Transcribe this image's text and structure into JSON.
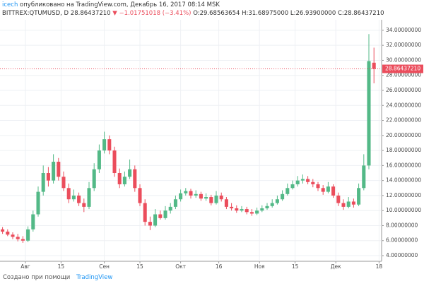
{
  "chart_data": {
    "type": "candlestick",
    "author": "icech",
    "published": "опубликовано на TradingView.com, Декабрь 16, 2017 08:14 MSK",
    "symbol": "BITTREX:QTUMUSD, D",
    "last": "28.86437210",
    "change": "▼ −1.01751018 (−3.41%)",
    "ohlc_labels": [
      "O:29.68563654",
      "H:31.68975000",
      "L:26.93900000",
      "C:28.86437210"
    ],
    "footer": "Создано при помощи",
    "brand": "TradingView",
    "up_color": "#53b987",
    "down_color": "#eb4d5c",
    "grid": true,
    "x": [
      1,
      3,
      5,
      7,
      9,
      11,
      13,
      15,
      17,
      19,
      21,
      23,
      25,
      27,
      29,
      31,
      33,
      35,
      37,
      39,
      41,
      43,
      45,
      47,
      49,
      51,
      53,
      55,
      57,
      59,
      61,
      63,
      65,
      67,
      69,
      71,
      73,
      75,
      77,
      79,
      81,
      83,
      85,
      87,
      89,
      91,
      93,
      95,
      97,
      99,
      101,
      103,
      105,
      107,
      109,
      111,
      113,
      115,
      117,
      119,
      121,
      123,
      125,
      127,
      129,
      131,
      133,
      135,
      137,
      139,
      141,
      143,
      145,
      147
    ],
    "open": [
      7.5,
      7.2,
      6.8,
      6.5,
      6.2,
      6.0,
      7.5,
      9.5,
      12.5,
      15.0,
      14.0,
      16.5,
      14.5,
      13.0,
      11.5,
      12.0,
      11.0,
      10.5,
      13.0,
      15.5,
      18.0,
      19.5,
      18.0,
      15.0,
      13.5,
      14.5,
      15.5,
      13.0,
      11.0,
      8.5,
      8.0,
      9.5,
      9.0,
      10.0,
      10.5,
      11.5,
      12.3,
      12.6,
      12.0,
      12.2,
      11.6,
      11.8,
      11.0,
      12.0,
      11.5,
      10.5,
      10.3,
      10.0,
      10.2,
      9.8,
      9.6,
      10.0,
      10.3,
      10.6,
      11.0,
      11.5,
      12.2,
      13.0,
      13.5,
      14.0,
      14.2,
      13.8,
      13.5,
      13.0,
      12.5,
      13.2,
      12.0,
      11.0,
      10.5,
      11.2,
      10.8,
      13.0,
      16.0,
      29.68563654
    ],
    "high": [
      7.8,
      7.5,
      7.1,
      6.9,
      6.6,
      7.9,
      10.0,
      13.2,
      16.0,
      15.8,
      17.5,
      17.0,
      15.2,
      13.6,
      12.8,
      12.4,
      11.6,
      13.8,
      16.3,
      18.8,
      20.5,
      20.0,
      18.5,
      15.6,
      15.2,
      16.8,
      16.0,
      13.5,
      11.5,
      9.2,
      10.2,
      10.0,
      10.6,
      11.0,
      12.0,
      12.8,
      13.0,
      12.9,
      12.7,
      12.5,
      12.3,
      12.1,
      12.6,
      12.4,
      11.8,
      11.0,
      10.7,
      10.6,
      10.5,
      10.2,
      10.4,
      10.7,
      11.0,
      11.5,
      12.0,
      12.7,
      13.6,
      14.0,
      14.6,
      14.8,
      14.6,
      14.2,
      13.8,
      13.4,
      13.8,
      13.5,
      12.4,
      11.5,
      11.8,
      11.6,
      13.6,
      17.5,
      33.5,
      31.68975
    ],
    "low": [
      6.9,
      6.6,
      6.2,
      5.9,
      5.7,
      5.8,
      7.2,
      9.2,
      12.0,
      13.2,
      13.6,
      14.0,
      12.6,
      11.0,
      11.2,
      10.6,
      9.8,
      10.2,
      12.6,
      15.0,
      17.6,
      17.5,
      14.5,
      13.0,
      13.2,
      14.2,
      12.5,
      10.6,
      8.0,
      7.4,
      7.8,
      8.8,
      8.8,
      9.6,
      10.2,
      11.2,
      12.0,
      11.6,
      11.7,
      11.3,
      11.3,
      10.7,
      10.8,
      11.2,
      10.2,
      10.0,
      9.7,
      9.8,
      9.5,
      9.3,
      9.4,
      9.8,
      10.1,
      10.4,
      10.8,
      11.3,
      12.0,
      12.8,
      13.2,
      13.6,
      13.5,
      13.1,
      12.6,
      12.1,
      12.3,
      11.7,
      10.6,
      10.1,
      10.3,
      10.4,
      10.6,
      12.7,
      15.5,
      26.939
    ],
    "close": [
      7.2,
      6.8,
      6.5,
      6.2,
      6.0,
      7.5,
      9.5,
      12.5,
      15.0,
      14.0,
      16.5,
      14.5,
      13.0,
      11.5,
      12.0,
      11.0,
      10.5,
      13.0,
      15.5,
      18.0,
      19.5,
      18.0,
      15.0,
      13.5,
      14.5,
      15.5,
      13.0,
      11.0,
      8.5,
      8.0,
      9.5,
      9.0,
      10.0,
      10.5,
      11.5,
      12.3,
      12.6,
      12.0,
      12.2,
      11.6,
      11.8,
      11.0,
      12.0,
      11.5,
      10.5,
      10.3,
      10.0,
      10.2,
      9.8,
      9.6,
      10.0,
      10.3,
      10.6,
      11.0,
      11.5,
      12.2,
      13.0,
      13.5,
      14.0,
      14.2,
      13.8,
      13.5,
      13.0,
      12.5,
      13.2,
      12.0,
      11.0,
      10.5,
      11.2,
      10.8,
      13.0,
      16.0,
      29.9,
      28.8643721
    ],
    "last_price": {
      "value": 28.8643721,
      "label": "28.86437210"
    },
    "xlim": [
      0,
      150
    ],
    "xticks": [
      {
        "value": 10,
        "label": "Авг"
      },
      {
        "value": 24,
        "label": "15"
      },
      {
        "value": 41,
        "label": "Сен"
      },
      {
        "value": 55,
        "label": "15"
      },
      {
        "value": 71,
        "label": "Окт"
      },
      {
        "value": 86,
        "label": "16"
      },
      {
        "value": 102,
        "label": "Ноя"
      },
      {
        "value": 116,
        "label": "15"
      },
      {
        "value": 132,
        "label": "Дек"
      },
      {
        "value": 149,
        "label": "18"
      }
    ],
    "ylim": [
      3.25,
      35.4
    ],
    "yticks": [
      {
        "value": 4,
        "label": "4.00000000"
      },
      {
        "value": 6,
        "label": "6.00000000"
      },
      {
        "value": 8,
        "label": "8.00000000"
      },
      {
        "value": 10,
        "label": "10.00000000"
      },
      {
        "value": 12,
        "label": "12.00000000"
      },
      {
        "value": 14,
        "label": "14.00000000"
      },
      {
        "value": 16,
        "label": "16.00000000"
      },
      {
        "value": 18,
        "label": "18.00000000"
      },
      {
        "value": 20,
        "label": "20.00000000"
      },
      {
        "value": 22,
        "label": "22.00000000"
      },
      {
        "value": 24,
        "label": "24.00000000"
      },
      {
        "value": 26,
        "label": "26.00000000"
      },
      {
        "value": 28,
        "label": "28.00000000"
      },
      {
        "value": 30,
        "label": "30.00000000"
      },
      {
        "value": 32,
        "label": "32.00000000"
      },
      {
        "value": 34,
        "label": "34.00000000"
      }
    ]
  }
}
